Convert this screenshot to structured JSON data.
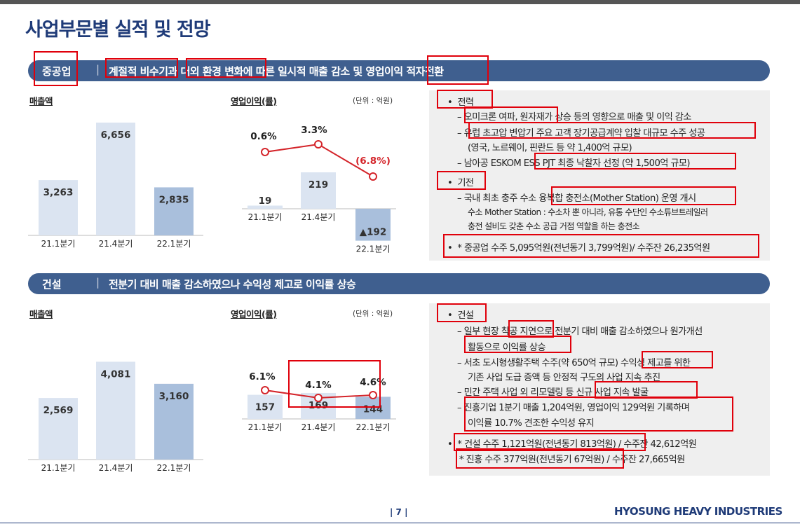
{
  "title": "사업부문별 실적 및 전망",
  "unit_note": "(단위 : 억원)",
  "sections": [
    {
      "category": "중공업",
      "separator": "|",
      "headline": "계절적 비수기과 대외 환경 변화에 따른 일시적 매출 감소 및 영업이익 적자전환",
      "sales_label": "매출액",
      "profit_label": "영업이익(률)",
      "bullets": [
        {
          "bullet": "•",
          "head": "전력",
          "items": [
            "– 오미크론 여파, 원자재가 상승 등의 영향으로 매출 및 이익 감소",
            "– 유럽 초고압 변압기 주요 고객 장기공급계약 입찰 대규모 수주 성공",
            "(영국, 노르웨이, 핀란드 등 약 1,400억 규모)",
            "– 남아공 ESKOM ESS PJT 최종 낙찰자 선정 (약 1,500억 규모)"
          ]
        },
        {
          "bullet": "•",
          "head": "기전",
          "items": [
            "– 국내 최초 충주 수소 융복합 충전소(Mother Station) 운영 개시",
            "수소 Mother Station : 수소차 뿐 아니라, 유통 수단인 수소튜브트레일러",
            "충전 설비도 갖춘 수소 공급 거점 역할을 하는 충전소"
          ]
        },
        {
          "bullet": "•",
          "head": "* 중공업 수주 5,095억원(전년동기 3,799억원)/ 수주잔 26,235억원",
          "items": []
        }
      ]
    },
    {
      "category": "건설",
      "separator": "|",
      "headline": "전분기 대비 매출 감소하였으나 수익성 제고로 이익률 상승",
      "sales_label": "매출액",
      "profit_label": "영업이익(률)",
      "bullets": [
        {
          "bullet": "•",
          "head": "건설",
          "items": [
            "– 일부 현장 착공 지연으로 전분기 대비 매출 감소하였으나 원가개선",
            "활동으로 이익률 상승",
            "– 서초 도시형생활주택 수주(약 650억 규모) 수익성 제고를 위한",
            "기존 사업 도급 증액 등 안정적 구도의 사업 지속 추진",
            "– 민간 주택 사업 외 리모델링 등 신규 사업 지속 발굴",
            "– 진흥기업 1분기 매출 1,204억원, 영업이익 129억원 기록하며",
            "이익률 10.7% 견조한 수익성 유지"
          ]
        },
        {
          "bullet": "•",
          "head": "* 건설 수주 1,121억원(전년동기 813억원) / 수주잔 42,612억원",
          "items": [
            "* 진흥 수주 377억원(전년동기 67억원) / 수주잔 27,665억원"
          ]
        }
      ]
    }
  ],
  "chart_data": [
    {
      "type": "bar",
      "title": "매출액",
      "section": "중공업",
      "categories": [
        "21.1분기",
        "21.4분기",
        "22.1분기"
      ],
      "values": [
        3263,
        6656,
        2835
      ],
      "labels": [
        "3,263",
        "6,656",
        "2,835"
      ],
      "ylim": [
        0,
        8000
      ]
    },
    {
      "type": "bar+line",
      "title": "영업이익(률)",
      "section": "중공업",
      "unit": "억원",
      "categories": [
        "21.1분기",
        "21.4분기",
        "22.1분기"
      ],
      "values": [
        19,
        219,
        -192
      ],
      "labels": [
        "19",
        "219",
        "▲192"
      ],
      "margins": [
        0.6,
        3.3,
        -6.8
      ],
      "margin_labels": [
        "0.6%",
        "3.3%",
        "(6.8%)"
      ]
    },
    {
      "type": "bar",
      "title": "매출액",
      "section": "건설",
      "categories": [
        "21.1분기",
        "21.4분기",
        "22.1분기"
      ],
      "values": [
        2569,
        4081,
        3160
      ],
      "labels": [
        "2,569",
        "4,081",
        "3,160"
      ],
      "ylim": [
        0,
        6000
      ]
    },
    {
      "type": "bar+line",
      "title": "영업이익(률)",
      "section": "건설",
      "unit": "억원",
      "categories": [
        "21.1분기",
        "21.4분기",
        "22.1분기"
      ],
      "values": [
        157,
        169,
        144
      ],
      "labels": [
        "157",
        "169",
        "144"
      ],
      "margins": [
        6.1,
        4.1,
        4.6
      ],
      "margin_labels": [
        "6.1%",
        "4.1%",
        "4.6%"
      ]
    }
  ],
  "footer": {
    "page": "| 7 |",
    "brand": "HYOSUNG HEAVY INDUSTRIES"
  },
  "colors": {
    "title": "#1f3b78",
    "banner": "#3f5f8f",
    "bar_light": "#dbe4f1",
    "bar_dark": "#a9bfdc",
    "line": "#d4242a",
    "highlight": "#e0000b",
    "textbox": "#efefef"
  }
}
